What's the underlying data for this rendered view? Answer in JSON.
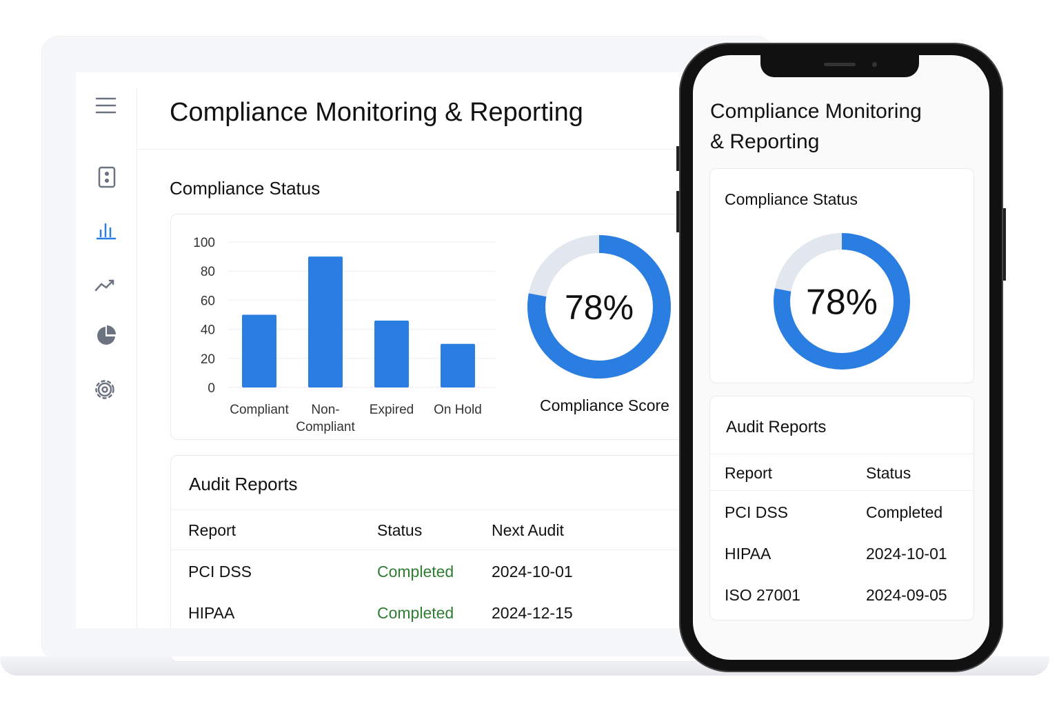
{
  "chart_data": [
    {
      "type": "bar",
      "categories": [
        "Compliant",
        "Non-Compliant",
        "Expired",
        "On Hold"
      ],
      "values": [
        50,
        90,
        46,
        30
      ],
      "color": "#2a7de1",
      "ylim": [
        0,
        100
      ],
      "yticks": [
        0,
        20,
        40,
        60,
        80,
        100
      ],
      "grid": true
    },
    {
      "type": "donut",
      "values": [
        78
      ],
      "value_labels": [
        "78%"
      ],
      "title": "Compliance Score",
      "color": "#2a7de1",
      "track_color": "#e1e6ef"
    },
    {
      "type": "donut",
      "values": [
        78
      ],
      "value_labels": [
        "78%"
      ],
      "color": "#2a7de1",
      "track_color": "#e1e6ef"
    }
  ],
  "laptop": {
    "title": "Compliance Monitoring & Reporting",
    "status_title": "Compliance Status",
    "audit": {
      "title": "Audit Reports",
      "columns": [
        "Report",
        "Status",
        "Next Audit"
      ],
      "rows": [
        [
          "PCI DSS",
          "Completed",
          "2024-10-01"
        ],
        [
          "HIPAA",
          "Completed",
          "2024-12-15"
        ]
      ]
    }
  },
  "phone": {
    "title": "Compliance Monitoring & Reporting",
    "status_title": "Compliance Status",
    "audit": {
      "title": "Audit Reports",
      "columns": [
        "Report",
        "Status"
      ],
      "rows": [
        [
          "PCI DSS",
          "Completed"
        ],
        [
          "HIPAA",
          "2024-10-01"
        ],
        [
          "ISO 27001",
          "2024-09-05"
        ]
      ]
    }
  }
}
